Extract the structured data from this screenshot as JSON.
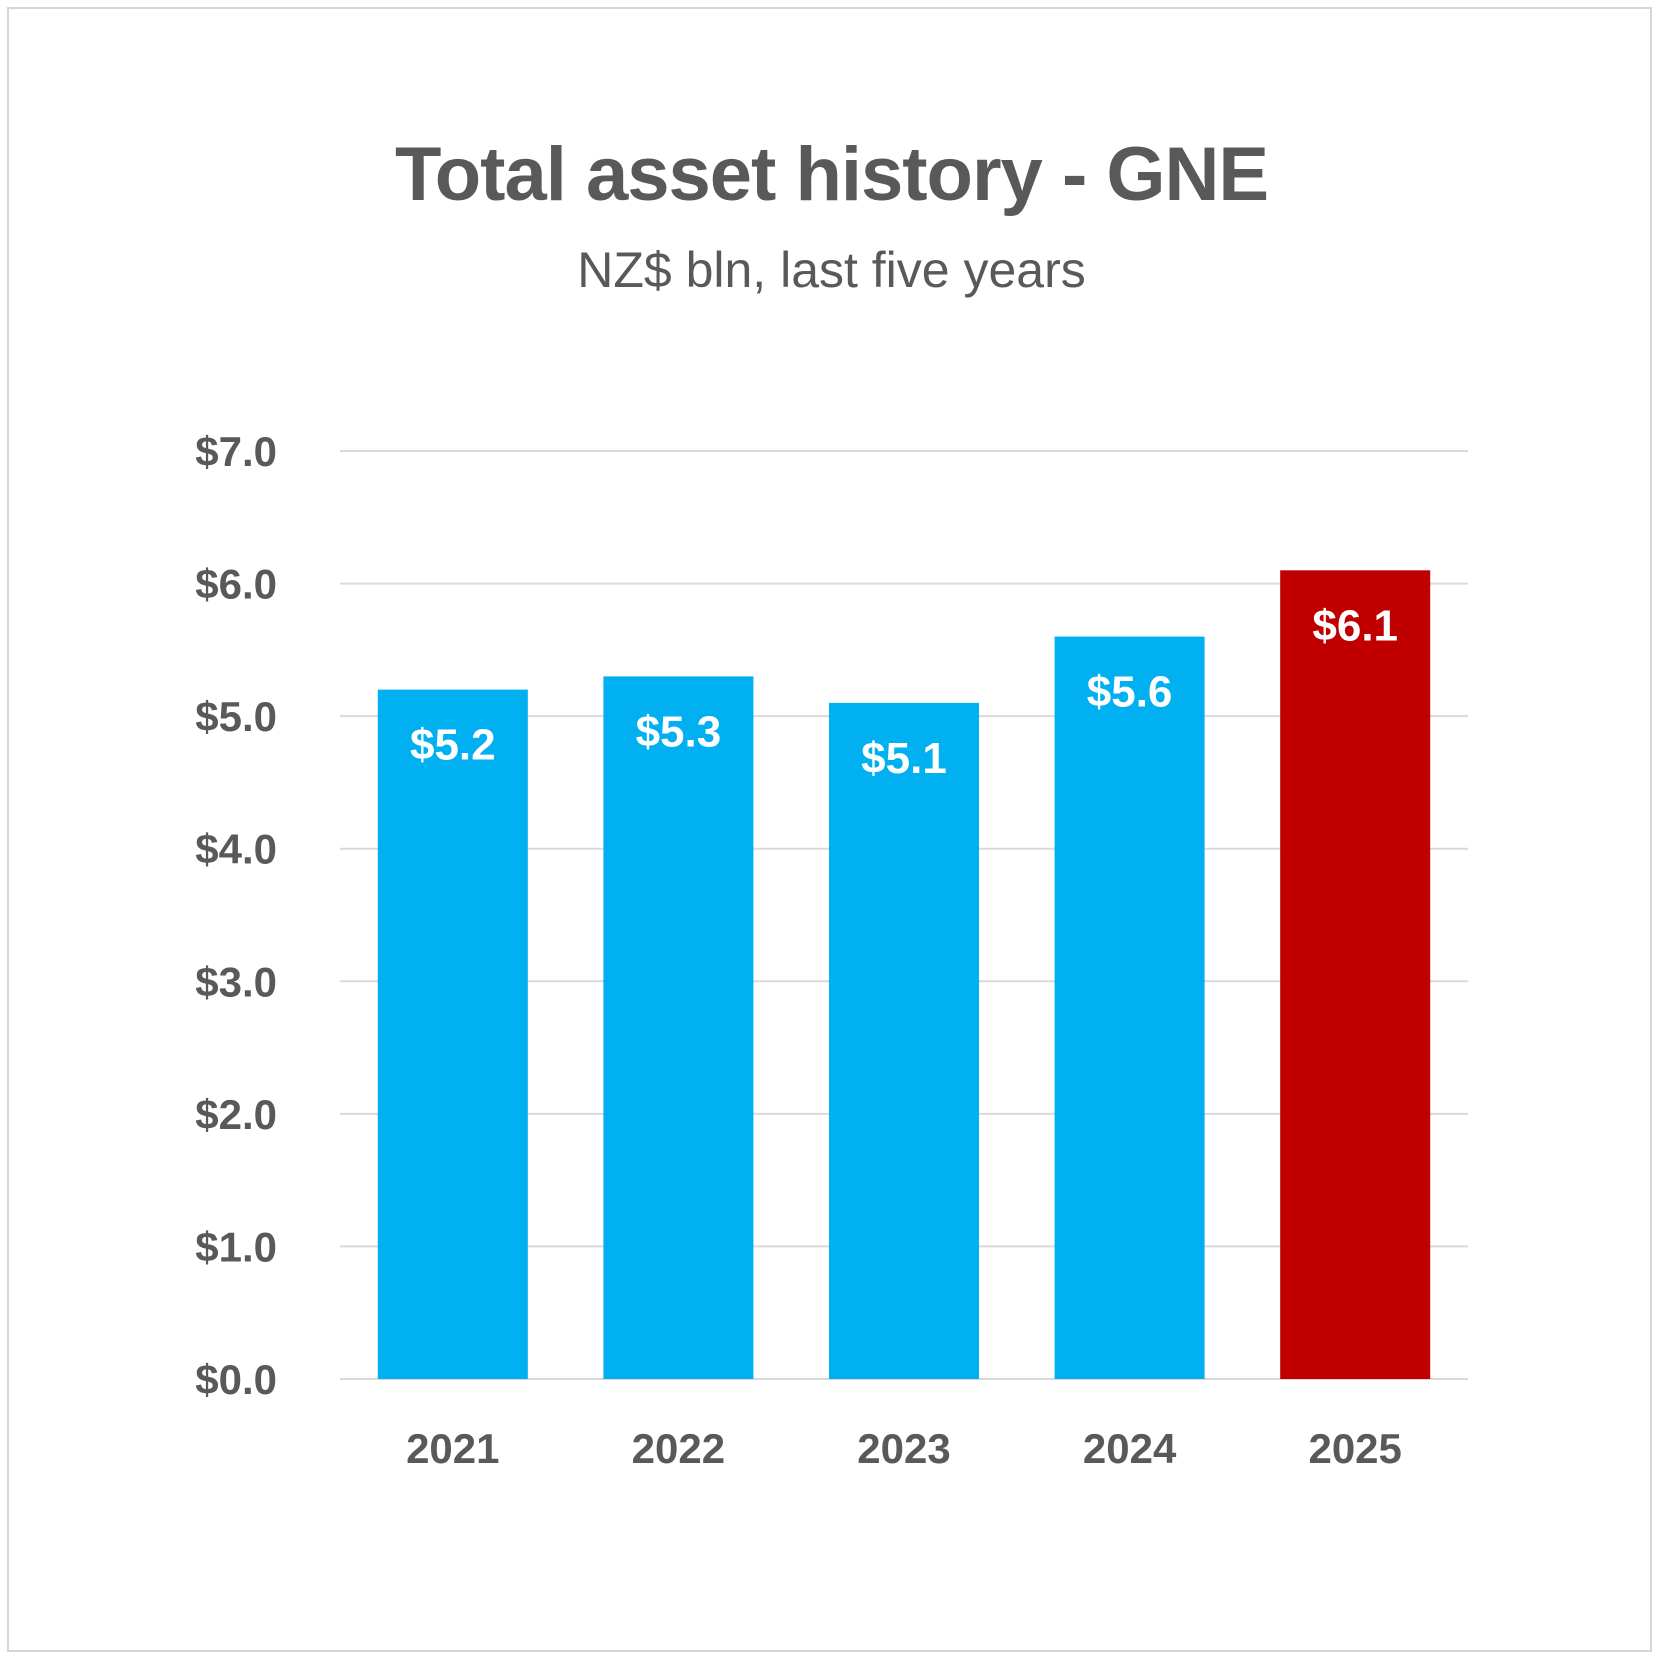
{
  "chart_data": {
    "type": "bar",
    "title": "Total asset history - GNE",
    "subtitle": "NZ$ bln, last five years",
    "categories": [
      "2021",
      "2022",
      "2023",
      "2024",
      "2025"
    ],
    "values": [
      5.2,
      5.3,
      5.1,
      5.6,
      6.1
    ],
    "data_labels": [
      "$5.2",
      "$5.3",
      "$5.1",
      "$5.6",
      "$6.1"
    ],
    "y_ticks": [
      0,
      1,
      2,
      3,
      4,
      5,
      6,
      7
    ],
    "y_tick_labels": [
      "$0.0",
      "$1.0",
      "$2.0",
      "$3.0",
      "$4.0",
      "$5.0",
      "$6.0",
      "$7.0"
    ],
    "ylim": [
      0,
      7
    ],
    "xlabel": "",
    "ylabel": "",
    "grid": true,
    "legend": "none",
    "colors": {
      "default_bar": "#00B0F0",
      "highlight_bar": "#C00000",
      "gridline": "#D9D9D9",
      "text": "#595959",
      "data_label": "#FFFFFF"
    },
    "highlight_index": 4
  }
}
